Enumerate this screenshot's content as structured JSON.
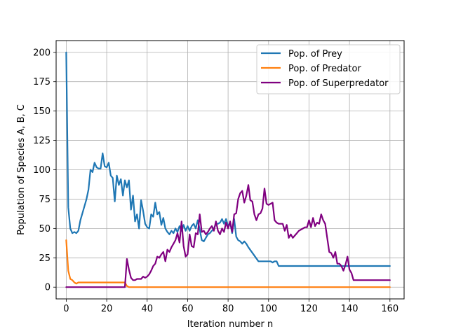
{
  "chart_data": {
    "type": "line",
    "title": "",
    "xlabel": "Iteration number n",
    "ylabel": "Population of Species A, B, C",
    "xlim": [
      -5,
      167
    ],
    "ylim": [
      -10,
      210
    ],
    "xticks": [
      0,
      20,
      40,
      60,
      80,
      100,
      120,
      140,
      160
    ],
    "yticks": [
      0,
      25,
      50,
      75,
      100,
      125,
      150,
      175,
      200
    ],
    "grid": true,
    "legend_position": "upper-right",
    "series": [
      {
        "name": "Pop. of Prey",
        "color": "#1f77b4",
        "x": [
          0,
          1,
          2,
          3,
          4,
          5,
          6,
          7,
          8,
          9,
          10,
          11,
          12,
          13,
          14,
          15,
          16,
          17,
          18,
          19,
          20,
          21,
          22,
          23,
          24,
          25,
          26,
          27,
          28,
          29,
          30,
          31,
          32,
          33,
          34,
          35,
          36,
          37,
          38,
          39,
          40,
          41,
          42,
          43,
          44,
          45,
          46,
          47,
          48,
          49,
          50,
          51,
          52,
          53,
          54,
          55,
          56,
          57,
          58,
          59,
          60,
          61,
          62,
          63,
          64,
          65,
          66,
          67,
          68,
          69,
          70,
          71,
          72,
          73,
          74,
          75,
          76,
          77,
          78,
          79,
          80,
          81,
          82,
          83,
          84,
          85,
          86,
          87,
          88,
          89,
          90,
          95,
          100,
          101,
          102,
          103,
          104,
          105,
          110,
          120,
          130,
          140,
          150,
          160
        ],
        "y": [
          200,
          68,
          50,
          46,
          47,
          46,
          48,
          57,
          63,
          69,
          75,
          83,
          100,
          98,
          106,
          102,
          101,
          101,
          114,
          103,
          102,
          106,
          95,
          93,
          73,
          95,
          87,
          92,
          78,
          91,
          85,
          91,
          66,
          78,
          56,
          62,
          50,
          74,
          65,
          54,
          51,
          50,
          62,
          60,
          72,
          62,
          64,
          53,
          59,
          50,
          47,
          45,
          48,
          46,
          50,
          47,
          52,
          48,
          53,
          48,
          52,
          48,
          52,
          54,
          50,
          57,
          49,
          40,
          39,
          42,
          45,
          46,
          48,
          50,
          54,
          54,
          55,
          58,
          54,
          58,
          52,
          55,
          46,
          58,
          43,
          40,
          39,
          37,
          39,
          37,
          34,
          22,
          22,
          22,
          21,
          22,
          22,
          18,
          18,
          18,
          18,
          18,
          18,
          18
        ]
      },
      {
        "name": "Pop. of Predator",
        "color": "#ff7f0e",
        "x": [
          0,
          1,
          2,
          3,
          4,
          5,
          6,
          7,
          8,
          9,
          10,
          15,
          20,
          25,
          29,
          30,
          31,
          32,
          40,
          60,
          80,
          100,
          120,
          140,
          160
        ],
        "y": [
          40,
          14,
          7,
          6,
          4,
          3,
          4,
          4,
          4,
          4,
          4,
          4,
          4,
          4,
          4,
          1,
          0,
          0,
          0,
          0,
          0,
          0,
          0,
          0,
          0
        ]
      },
      {
        "name": "Pop. of Superpredator",
        "color": "#800080",
        "x": [
          0,
          10,
          20,
          28,
          29,
          30,
          31,
          32,
          33,
          34,
          35,
          36,
          37,
          38,
          39,
          40,
          41,
          42,
          43,
          44,
          45,
          46,
          47,
          48,
          49,
          50,
          51,
          52,
          53,
          54,
          55,
          56,
          57,
          58,
          59,
          60,
          61,
          62,
          63,
          64,
          65,
          66,
          67,
          68,
          69,
          70,
          71,
          72,
          73,
          74,
          75,
          76,
          77,
          78,
          79,
          80,
          81,
          82,
          83,
          84,
          85,
          86,
          87,
          88,
          89,
          90,
          91,
          92,
          93,
          94,
          95,
          96,
          97,
          98,
          99,
          100,
          101,
          102,
          103,
          104,
          105,
          106,
          107,
          108,
          109,
          110,
          111,
          112,
          113,
          114,
          115,
          116,
          117,
          118,
          119,
          120,
          121,
          122,
          123,
          124,
          125,
          126,
          127,
          128,
          129,
          130,
          131,
          132,
          133,
          134,
          135,
          136,
          137,
          138,
          139,
          140,
          141,
          142,
          150,
          160
        ],
        "y": [
          0,
          0,
          0,
          0,
          0,
          24,
          15,
          8,
          6,
          6,
          7,
          7,
          7,
          9,
          8,
          9,
          11,
          14,
          18,
          20,
          26,
          25,
          28,
          30,
          22,
          32,
          30,
          34,
          37,
          40,
          46,
          38,
          56,
          35,
          26,
          28,
          45,
          35,
          34,
          46,
          45,
          62,
          47,
          48,
          45,
          47,
          50,
          52,
          48,
          56,
          48,
          45,
          50,
          47,
          55,
          50,
          56,
          47,
          62,
          63,
          75,
          80,
          82,
          72,
          78,
          87,
          74,
          73,
          62,
          57,
          62,
          63,
          67,
          84,
          71,
          70,
          71,
          72,
          57,
          55,
          54,
          54,
          54,
          48,
          53,
          42,
          45,
          42,
          44,
          46,
          48,
          49,
          50,
          51,
          51,
          57,
          51,
          59,
          52,
          55,
          54,
          62,
          57,
          54,
          42,
          30,
          29,
          25,
          30,
          20,
          20,
          18,
          14,
          19,
          26,
          15,
          12,
          6,
          6,
          6
        ]
      }
    ]
  }
}
